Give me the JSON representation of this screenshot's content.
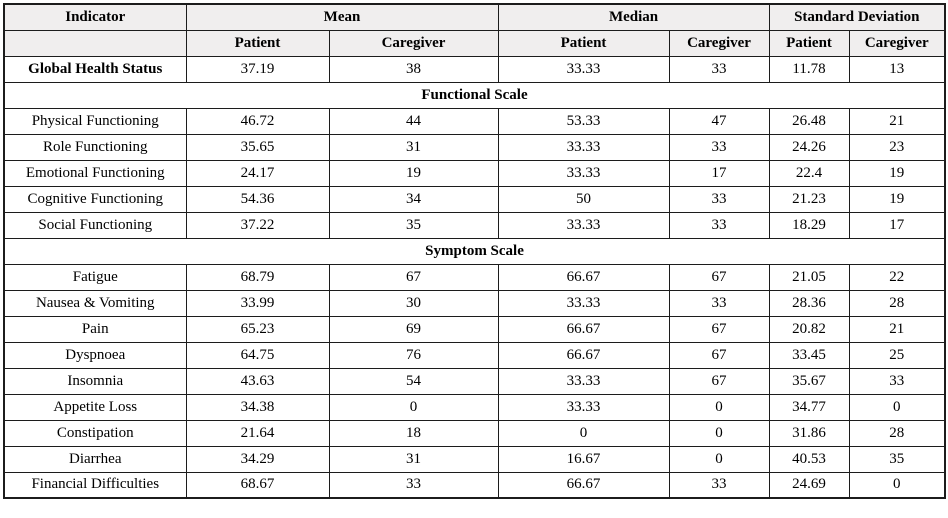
{
  "table": {
    "colors": {
      "header_bg": "#f0eeee",
      "border": "#1c1c1c",
      "text": "#000000",
      "body_bg": "#ffffff"
    },
    "header": {
      "indicator": "Indicator",
      "groups": [
        "Mean",
        "Median",
        "Standard Deviation"
      ],
      "subheaders": [
        "Patient",
        "Caregiver"
      ]
    },
    "rows": [
      {
        "type": "data",
        "bold": true,
        "label": "Global Health Status",
        "values": [
          "37.19",
          "38",
          "33.33",
          "33",
          "11.78",
          "13"
        ]
      },
      {
        "type": "section",
        "label": "Functional Scale"
      },
      {
        "type": "data",
        "bold": false,
        "label": "Physical Functioning",
        "values": [
          "46.72",
          "44",
          "53.33",
          "47",
          "26.48",
          "21"
        ]
      },
      {
        "type": "data",
        "bold": false,
        "label": "Role Functioning",
        "values": [
          "35.65",
          "31",
          "33.33",
          "33",
          "24.26",
          "23"
        ]
      },
      {
        "type": "data",
        "bold": false,
        "label": "Emotional Functioning",
        "values": [
          "24.17",
          "19",
          "33.33",
          "17",
          "22.4",
          "19"
        ]
      },
      {
        "type": "data",
        "bold": false,
        "label": "Cognitive Functioning",
        "values": [
          "54.36",
          "34",
          "50",
          "33",
          "21.23",
          "19"
        ]
      },
      {
        "type": "data",
        "bold": false,
        "label": "Social Functioning",
        "values": [
          "37.22",
          "35",
          "33.33",
          "33",
          "18.29",
          "17"
        ]
      },
      {
        "type": "section",
        "label": "Symptom Scale"
      },
      {
        "type": "data",
        "bold": false,
        "label": "Fatigue",
        "values": [
          "68.79",
          "67",
          "66.67",
          "67",
          "21.05",
          "22"
        ]
      },
      {
        "type": "data",
        "bold": false,
        "label": "Nausea & Vomiting",
        "values": [
          "33.99",
          "30",
          "33.33",
          "33",
          "28.36",
          "28"
        ]
      },
      {
        "type": "data",
        "bold": false,
        "label": "Pain",
        "values": [
          "65.23",
          "69",
          "66.67",
          "67",
          "20.82",
          "21"
        ]
      },
      {
        "type": "data",
        "bold": false,
        "label": "Dyspnoea",
        "values": [
          "64.75",
          "76",
          "66.67",
          "67",
          "33.45",
          "25"
        ]
      },
      {
        "type": "data",
        "bold": false,
        "label": "Insomnia",
        "values": [
          "43.63",
          "54",
          "33.33",
          "67",
          "35.67",
          "33"
        ]
      },
      {
        "type": "data",
        "bold": false,
        "label": "Appetite Loss",
        "values": [
          "34.38",
          "0",
          "33.33",
          "0",
          "34.77",
          "0"
        ]
      },
      {
        "type": "data",
        "bold": false,
        "label": "Constipation",
        "values": [
          "21.64",
          "18",
          "0",
          "0",
          "31.86",
          "28"
        ]
      },
      {
        "type": "data",
        "bold": false,
        "label": "Diarrhea",
        "values": [
          "34.29",
          "31",
          "16.67",
          "0",
          "40.53",
          "35"
        ]
      },
      {
        "type": "data",
        "bold": false,
        "label": "Financial Difficulties",
        "values": [
          "68.67",
          "33",
          "66.67",
          "33",
          "24.69",
          "0"
        ]
      }
    ]
  }
}
